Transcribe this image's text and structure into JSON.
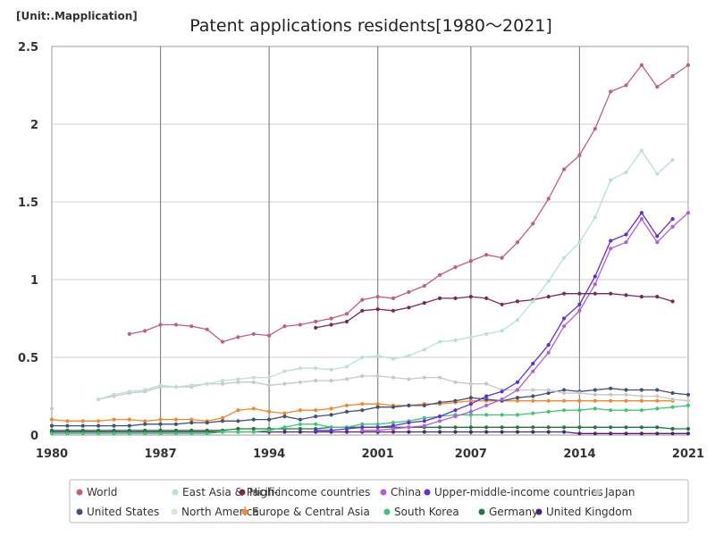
{
  "chart_data": {
    "type": "line",
    "title": "Patent applications residents[1980～2021]",
    "unit_label": "[Unit:.Mapplication]",
    "xlabel": "",
    "ylabel": "",
    "xlim": [
      1980,
      2021
    ],
    "ylim": [
      0,
      2.5
    ],
    "x_ticks": [
      1980,
      1987,
      1994,
      2001,
      2007,
      2014,
      2021
    ],
    "y_ticks": [
      0,
      0.5,
      1,
      1.5,
      2,
      2.5
    ],
    "grid": true,
    "legend_position": "bottom",
    "years": [
      1980,
      1981,
      1982,
      1983,
      1984,
      1985,
      1986,
      1987,
      1988,
      1989,
      1990,
      1991,
      1992,
      1993,
      1994,
      1995,
      1996,
      1997,
      1998,
      1999,
      2000,
      2001,
      2002,
      2003,
      2004,
      2005,
      2006,
      2007,
      2008,
      2009,
      2010,
      2011,
      2012,
      2013,
      2014,
      2015,
      2016,
      2017,
      2018,
      2019,
      2020,
      2021
    ],
    "series": [
      {
        "name": "World",
        "color": "#c0607a",
        "values": [
          null,
          null,
          null,
          null,
          null,
          0.65,
          0.67,
          0.71,
          0.71,
          0.7,
          0.68,
          0.6,
          0.63,
          0.65,
          0.64,
          0.7,
          0.71,
          0.73,
          0.75,
          0.78,
          0.87,
          0.89,
          0.88,
          0.92,
          0.96,
          1.03,
          1.08,
          1.12,
          1.16,
          1.14,
          1.24,
          1.36,
          1.52,
          1.71,
          1.8,
          1.97,
          2.21,
          2.25,
          2.38,
          2.24,
          2.31,
          2.38
        ]
      },
      {
        "name": "East Asia & Pacific",
        "color": "#b8e0dc",
        "values": [
          null,
          null,
          null,
          0.23,
          0.26,
          0.28,
          0.29,
          0.32,
          0.31,
          0.32,
          0.33,
          0.35,
          0.36,
          0.37,
          0.37,
          0.41,
          0.43,
          0.43,
          0.42,
          0.44,
          0.5,
          0.51,
          0.49,
          0.51,
          0.55,
          0.6,
          0.61,
          0.63,
          0.65,
          0.67,
          0.74,
          0.86,
          0.99,
          1.14,
          1.24,
          1.4,
          1.64,
          1.69,
          1.83,
          1.68,
          1.77,
          null
        ]
      },
      {
        "name": "High-income countries",
        "color": "#7a2a55",
        "values": [
          null,
          null,
          null,
          null,
          null,
          null,
          null,
          null,
          null,
          null,
          null,
          null,
          null,
          null,
          null,
          null,
          null,
          0.69,
          0.71,
          0.73,
          0.8,
          0.81,
          0.8,
          0.82,
          0.85,
          0.88,
          0.88,
          0.89,
          0.88,
          0.84,
          0.86,
          0.87,
          0.89,
          0.91,
          0.91,
          0.91,
          0.91,
          0.9,
          0.89,
          0.89,
          0.86,
          null
        ]
      },
      {
        "name": "China",
        "color": "#b05fd8",
        "values": [
          null,
          null,
          null,
          null,
          null,
          null,
          null,
          null,
          null,
          null,
          null,
          null,
          null,
          null,
          null,
          null,
          null,
          null,
          null,
          null,
          0.03,
          0.03,
          0.04,
          0.05,
          0.06,
          0.09,
          0.12,
          0.15,
          0.19,
          0.23,
          0.29,
          0.41,
          0.53,
          0.7,
          0.8,
          0.97,
          1.2,
          1.24,
          1.39,
          1.24,
          1.34,
          1.43
        ]
      },
      {
        "name": "Upper-middle-income countries",
        "color": "#5e2ee0",
        "values": [
          null,
          null,
          null,
          null,
          null,
          null,
          null,
          null,
          null,
          null,
          null,
          null,
          null,
          null,
          null,
          null,
          null,
          0.03,
          0.03,
          0.04,
          0.05,
          0.05,
          0.06,
          0.08,
          0.09,
          0.12,
          0.16,
          0.2,
          0.25,
          0.28,
          0.34,
          0.46,
          0.58,
          0.75,
          0.84,
          1.02,
          1.25,
          1.29,
          1.43,
          1.28,
          1.39,
          null
        ]
      },
      {
        "name": "Japan",
        "color": "#c8c8c8",
        "values": [
          0.17,
          null,
          null,
          0.23,
          0.25,
          0.27,
          0.28,
          0.31,
          0.31,
          0.31,
          0.33,
          0.33,
          0.34,
          0.34,
          0.32,
          0.33,
          0.34,
          0.35,
          0.35,
          0.36,
          0.38,
          0.38,
          0.37,
          0.36,
          0.37,
          0.37,
          0.34,
          0.33,
          0.33,
          0.29,
          0.29,
          0.29,
          0.29,
          0.27,
          0.27,
          0.26,
          0.26,
          0.26,
          0.25,
          0.25,
          0.23,
          0.22
        ]
      },
      {
        "name": "United States",
        "color": "#44507a",
        "values": [
          0.06,
          0.06,
          0.06,
          0.06,
          0.06,
          0.06,
          0.07,
          0.07,
          0.07,
          0.08,
          0.08,
          0.09,
          0.09,
          0.1,
          0.1,
          0.12,
          0.1,
          0.12,
          0.13,
          0.15,
          0.16,
          0.18,
          0.18,
          0.19,
          0.19,
          0.21,
          0.22,
          0.24,
          0.23,
          0.22,
          0.24,
          0.25,
          0.27,
          0.29,
          0.28,
          0.29,
          0.3,
          0.29,
          0.29,
          0.29,
          0.27,
          0.26
        ]
      },
      {
        "name": "North America",
        "color": "#d6e8c4",
        "values": [
          null,
          null,
          null,
          null,
          null,
          null,
          null,
          null,
          null,
          null,
          null,
          null,
          null,
          null,
          null,
          null,
          null,
          null,
          null,
          null,
          null,
          null,
          null,
          null,
          null,
          null,
          null,
          null,
          null,
          null,
          null,
          null,
          null,
          null,
          null,
          null,
          null,
          null,
          null,
          null,
          null,
          null
        ]
      },
      {
        "name": "Europe & Central Asia",
        "color": "#f08a2c",
        "values": [
          0.1,
          0.09,
          0.09,
          0.09,
          0.1,
          0.1,
          0.09,
          0.1,
          0.1,
          0.1,
          0.09,
          0.11,
          0.16,
          0.17,
          0.15,
          0.14,
          0.16,
          0.16,
          0.17,
          0.19,
          0.2,
          0.2,
          0.19,
          0.19,
          0.2,
          0.2,
          0.21,
          0.22,
          0.22,
          0.22,
          0.22,
          0.22,
          0.22,
          0.22,
          0.22,
          0.22,
          0.22,
          0.22,
          0.22,
          0.22,
          0.22,
          null
        ]
      },
      {
        "name": "South Korea",
        "color": "#3cc878",
        "values": [
          0.01,
          0.01,
          0.01,
          0.01,
          0.01,
          0.01,
          0.01,
          0.01,
          0.01,
          0.01,
          0.01,
          0.02,
          0.02,
          0.02,
          0.03,
          0.05,
          0.07,
          0.07,
          0.05,
          0.05,
          0.07,
          0.07,
          0.08,
          0.09,
          0.11,
          0.12,
          0.13,
          0.13,
          0.13,
          0.13,
          0.13,
          0.14,
          0.15,
          0.16,
          0.16,
          0.17,
          0.16,
          0.16,
          0.16,
          0.17,
          0.18,
          0.19
        ]
      },
      {
        "name": "Germany",
        "color": "#207a3a",
        "values": [
          0.03,
          0.03,
          0.03,
          0.03,
          0.03,
          0.03,
          0.03,
          0.03,
          0.03,
          0.03,
          0.03,
          0.03,
          0.04,
          0.04,
          0.04,
          0.04,
          0.04,
          0.04,
          0.05,
          0.05,
          0.05,
          0.05,
          0.05,
          0.05,
          0.05,
          0.05,
          0.05,
          0.05,
          0.05,
          0.05,
          0.05,
          0.05,
          0.05,
          0.05,
          0.05,
          0.05,
          0.05,
          0.05,
          0.05,
          0.05,
          0.04,
          0.04
        ]
      },
      {
        "name": "United Kingdom",
        "color": "#55207a",
        "values": [
          0.02,
          0.02,
          0.02,
          0.02,
          0.02,
          0.02,
          0.02,
          0.02,
          0.02,
          0.02,
          0.02,
          0.02,
          0.02,
          0.02,
          0.02,
          0.02,
          0.02,
          0.02,
          0.02,
          0.02,
          0.02,
          0.02,
          0.02,
          0.02,
          0.02,
          0.02,
          0.02,
          0.02,
          0.02,
          0.02,
          0.02,
          0.02,
          0.02,
          0.02,
          0.01,
          0.01,
          0.01,
          0.01,
          0.01,
          0.01,
          0.01,
          0.01
        ]
      }
    ]
  }
}
